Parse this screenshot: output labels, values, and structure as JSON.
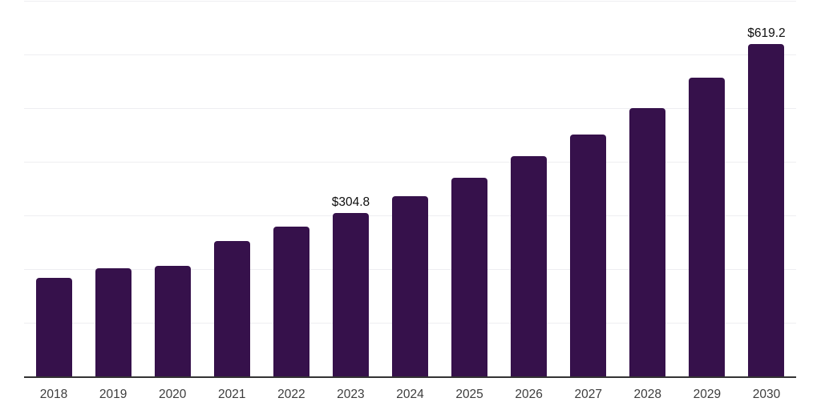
{
  "chart": {
    "colors": {
      "background": "#ffffff",
      "bar": "#36114b",
      "gridline": "#eeeef1",
      "axis_line": "#333333",
      "value_label": "#0e0e0e",
      "tick_label": "#3d3d3d"
    }
  },
  "chart_data": {
    "type": "bar",
    "title": "",
    "xlabel": "",
    "ylabel": "",
    "categories": [
      "2018",
      "2019",
      "2020",
      "2021",
      "2022",
      "2023",
      "2024",
      "2025",
      "2026",
      "2027",
      "2028",
      "2029",
      "2030"
    ],
    "values": [
      183,
      201,
      206,
      252,
      278.5,
      304.8,
      336,
      370.5,
      410.5,
      451,
      500.5,
      557,
      619.2
    ],
    "point_labels": [
      null,
      null,
      null,
      null,
      null,
      "$304.8",
      null,
      null,
      null,
      null,
      null,
      null,
      "$619.2"
    ],
    "currency_prefix": "$",
    "ylim": [
      0,
      700
    ],
    "gridline_step": 100,
    "grid": true,
    "y_axis_labels_visible": false,
    "legend": false
  }
}
